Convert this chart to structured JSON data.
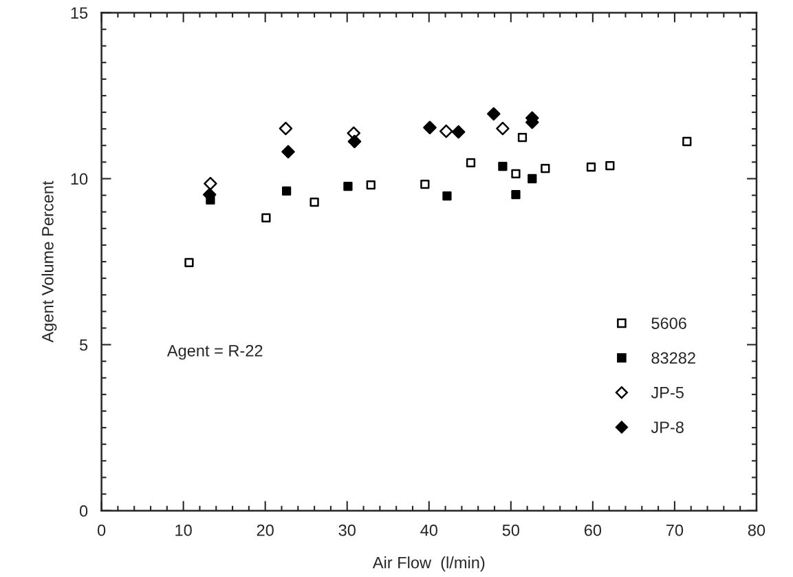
{
  "chart_data": {
    "type": "scatter",
    "xlabel": "Air Flow  (l/min)",
    "ylabel": "Agent Volume Percent",
    "xlim": [
      0,
      80
    ],
    "xticks": [
      0,
      10,
      20,
      30,
      40,
      50,
      60,
      70,
      80
    ],
    "ylim": [
      0,
      15
    ],
    "yticks": [
      0,
      5,
      10,
      15
    ],
    "grid": false,
    "legend": "bottom right",
    "annotations": [
      "Agent = R-22"
    ],
    "series": [
      {
        "name": "5606",
        "color": "#ffffff",
        "marker": "square",
        "x": [
          10.7,
          20.1,
          26.0,
          32.9,
          39.5,
          45.1,
          50.6,
          51.4,
          54.2,
          59.8,
          62.1,
          71.5
        ],
        "values": [
          7.47,
          8.82,
          9.29,
          9.81,
          9.83,
          10.48,
          10.15,
          11.24,
          10.31,
          10.35,
          10.39,
          11.12
        ]
      },
      {
        "name": "83282",
        "color": "#000000",
        "marker": "square",
        "x": [
          13.3,
          22.6,
          30.1,
          42.2,
          49.0,
          50.6,
          52.6
        ],
        "values": [
          9.36,
          9.63,
          9.77,
          9.48,
          10.37,
          9.52,
          10.0
        ]
      },
      {
        "name": "JP-5",
        "color": "#ffffff",
        "marker": "diamond",
        "x": [
          13.3,
          22.5,
          30.8,
          42.1,
          49.0
        ],
        "values": [
          9.85,
          11.51,
          11.37,
          11.43,
          11.51
        ]
      },
      {
        "name": "JP-8",
        "color": "#000000",
        "marker": "diamond",
        "x": [
          13.2,
          22.8,
          30.9,
          40.1,
          43.6,
          47.9,
          52.6,
          52.6
        ],
        "values": [
          9.52,
          10.81,
          11.12,
          11.54,
          11.41,
          11.95,
          11.83,
          11.7
        ]
      }
    ]
  }
}
